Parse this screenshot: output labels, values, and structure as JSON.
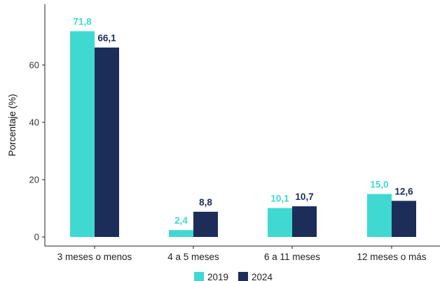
{
  "chart_data": {
    "type": "bar",
    "title": "",
    "xlabel": "",
    "ylabel": "Porcentaje (%)",
    "ylim": [
      0,
      74
    ],
    "yticks": [
      0,
      20,
      40,
      60
    ],
    "grid": false,
    "legend_position": "bottom",
    "categories": [
      "3 meses o menos",
      "4 a 5 meses",
      "6 a 11 meses",
      "12 meses o más"
    ],
    "series": [
      {
        "name": "2019",
        "color": "#40d9d2",
        "values": [
          71.8,
          2.4,
          10.1,
          15.0
        ],
        "labels": [
          "71,8",
          "2,4",
          "10,1",
          "15,0"
        ]
      },
      {
        "name": "2024",
        "color": "#1c2d5a",
        "values": [
          66.1,
          8.8,
          10.7,
          12.6
        ],
        "labels": [
          "66,1",
          "8,8",
          "10,7",
          "12,6"
        ]
      }
    ]
  }
}
